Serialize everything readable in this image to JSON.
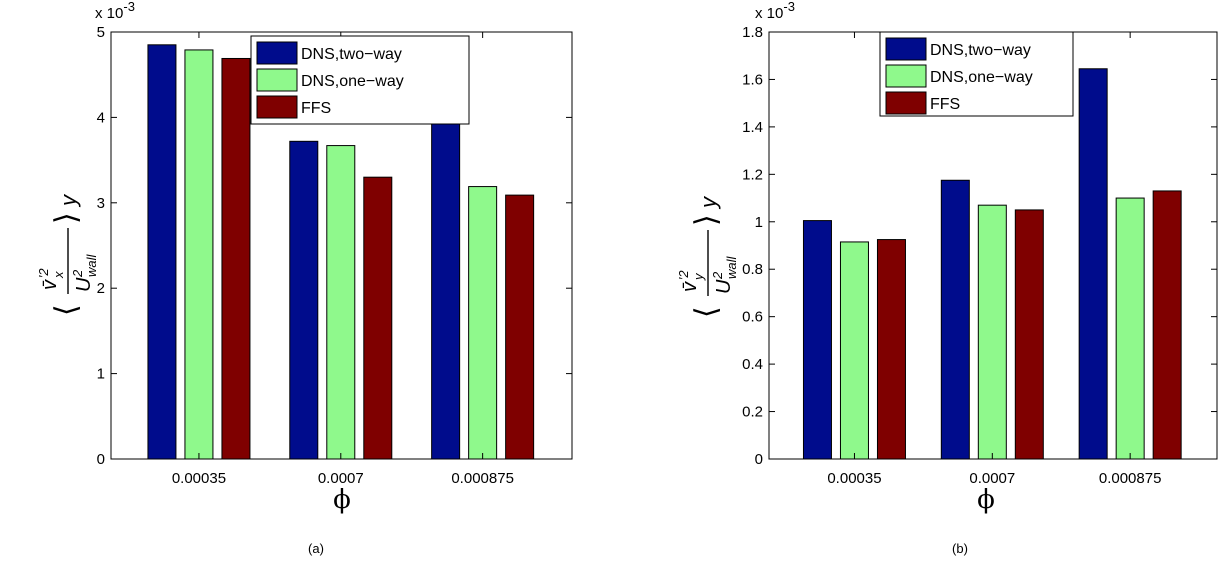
{
  "colors": {
    "dns_two_way": "#000c8c",
    "dns_one_way": "#8ff98c",
    "ffs": "#7f0000"
  },
  "chart_data": [
    {
      "type": "bar",
      "categories": [
        "0.00035",
        "0.0007",
        "0.000875"
      ],
      "xlabel": "ϕ",
      "ylabel": "⟨ v'x² / U²wall ⟩y",
      "ylim": [
        0,
        5
      ],
      "yticks": [
        "0",
        "1",
        "2",
        "3",
        "4",
        "5"
      ],
      "multiplier": "x 10",
      "multiplier_exp": "-3",
      "caption": "(a)",
      "legend_position": "top-right",
      "series": [
        {
          "name": "DNS,two−way",
          "values": [
            4.85,
            3.72,
            4.22
          ]
        },
        {
          "name": "DNS,one−way",
          "values": [
            4.79,
            3.67,
            3.19
          ]
        },
        {
          "name": "FFS",
          "values": [
            4.69,
            3.3,
            3.09
          ]
        }
      ]
    },
    {
      "type": "bar",
      "categories": [
        "0.00035",
        "0.0007",
        "0.000875"
      ],
      "xlabel": "ϕ",
      "ylabel": "⟨ v'y² / U²wall ⟩y",
      "ylim": [
        0,
        1.8
      ],
      "yticks": [
        "0",
        "0.2",
        "0.4",
        "0.6",
        "0.8",
        "1",
        "1.2",
        "1.4",
        "1.6",
        "1.8"
      ],
      "multiplier": "x 10",
      "multiplier_exp": "-3",
      "caption": "(b)",
      "legend_position": "top-left",
      "series": [
        {
          "name": "DNS,two−way",
          "values": [
            1.005,
            1.175,
            1.645
          ]
        },
        {
          "name": "DNS,one−way",
          "values": [
            0.915,
            1.07,
            1.1
          ]
        },
        {
          "name": "FFS",
          "values": [
            0.925,
            1.05,
            1.13
          ]
        }
      ]
    }
  ]
}
